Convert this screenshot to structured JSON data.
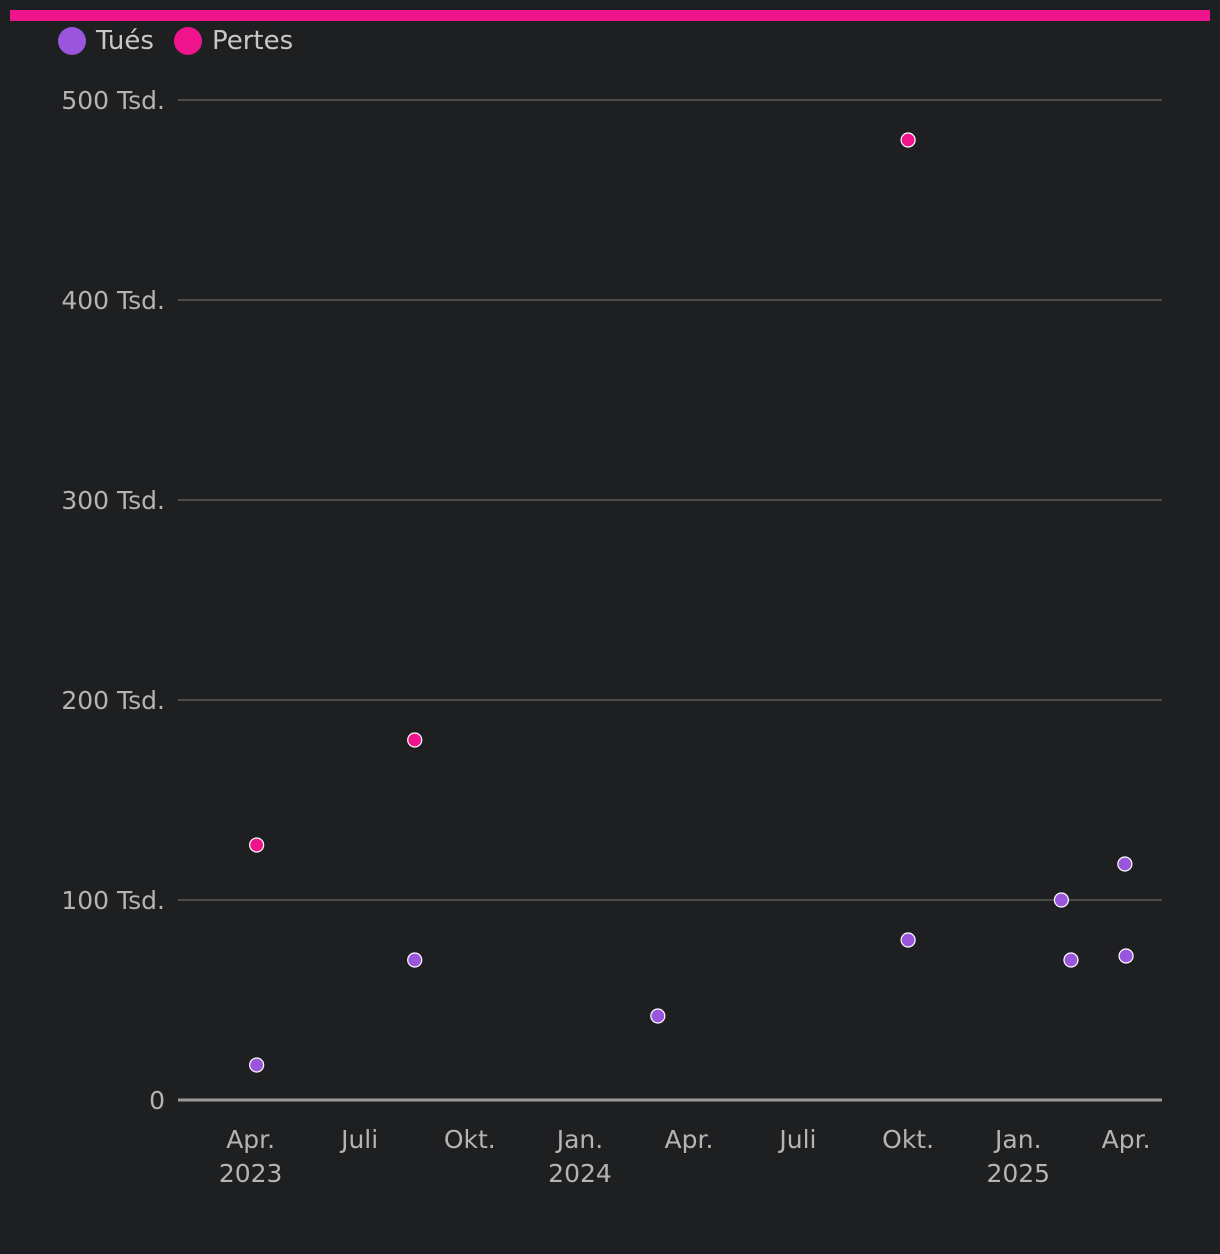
{
  "colors": {
    "background": "#1e1f21",
    "accent": "#f0148c",
    "tues": "#9a55dd",
    "pertes": "#f0148c"
  },
  "legend": {
    "items": [
      {
        "label": "Tués",
        "color": "#9a55dd"
      },
      {
        "label": "Pertes",
        "color": "#f0148c"
      }
    ],
    "placement": "top-left"
  },
  "chart_data": {
    "type": "scatter",
    "x_axis": {
      "type": "date",
      "range": [
        "2023-02-01",
        "2025-05-01"
      ],
      "ticks": [
        {
          "date": "2023-04-01",
          "label": "Apr.",
          "sublabel": "2023"
        },
        {
          "date": "2023-07-01",
          "label": "Juli",
          "sublabel": ""
        },
        {
          "date": "2023-10-01",
          "label": "Okt.",
          "sublabel": ""
        },
        {
          "date": "2024-01-01",
          "label": "Jan.",
          "sublabel": "2024"
        },
        {
          "date": "2024-04-01",
          "label": "Apr.",
          "sublabel": ""
        },
        {
          "date": "2024-07-01",
          "label": "Juli",
          "sublabel": ""
        },
        {
          "date": "2024-10-01",
          "label": "Okt.",
          "sublabel": ""
        },
        {
          "date": "2025-01-01",
          "label": "Jan.",
          "sublabel": "2025"
        },
        {
          "date": "2025-04-01",
          "label": "Apr.",
          "sublabel": ""
        }
      ]
    },
    "y_axis": {
      "range": [
        0,
        500000
      ],
      "ticks": [
        {
          "value": 0,
          "label": "0"
        },
        {
          "value": 100000,
          "label": "100 Tsd."
        },
        {
          "value": 200000,
          "label": "200 Tsd."
        },
        {
          "value": 300000,
          "label": "300 Tsd."
        },
        {
          "value": 400000,
          "label": "400 Tsd."
        },
        {
          "value": 500000,
          "label": "500 Tsd."
        }
      ]
    },
    "grid": true,
    "series": [
      {
        "name": "Tués",
        "color": "#9a55dd",
        "points": [
          {
            "x": "2023-04-06",
            "y": 17500
          },
          {
            "x": "2023-08-16",
            "y": 70000
          },
          {
            "x": "2024-03-06",
            "y": 42000
          },
          {
            "x": "2024-10-01",
            "y": 80000
          },
          {
            "x": "2025-02-06",
            "y": 100000
          },
          {
            "x": "2025-02-14",
            "y": 70000
          },
          {
            "x": "2025-03-31",
            "y": 118000
          },
          {
            "x": "2025-04-01",
            "y": 72000
          }
        ]
      },
      {
        "name": "Pertes",
        "color": "#f0148c",
        "points": [
          {
            "x": "2023-04-06",
            "y": 127500
          },
          {
            "x": "2023-08-16",
            "y": 180000
          },
          {
            "x": "2024-10-01",
            "y": 480000
          }
        ]
      }
    ]
  }
}
